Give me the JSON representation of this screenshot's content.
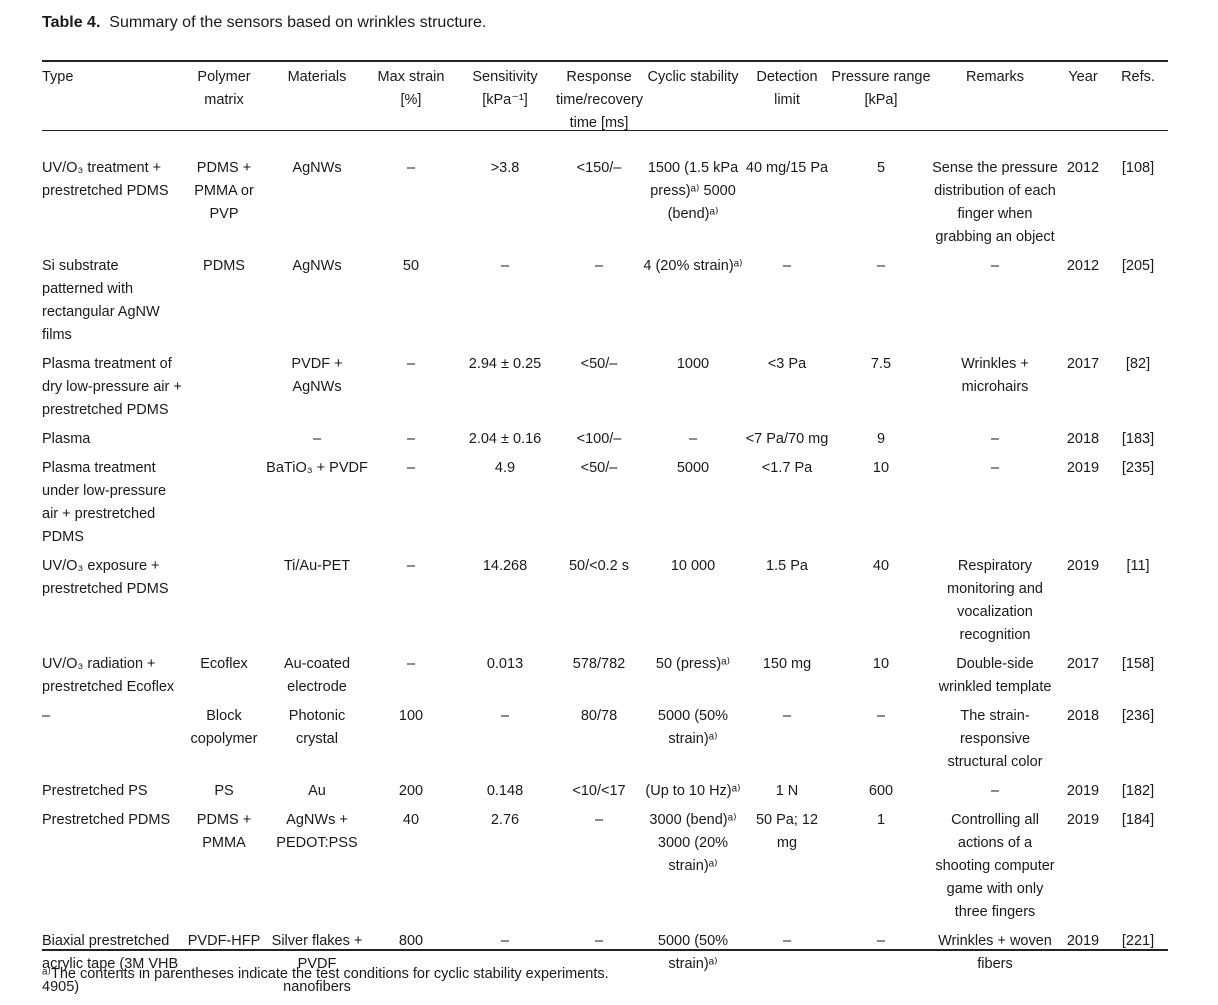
{
  "caption": {
    "label": "Table 4.",
    "text": "Summary of the sensors based on wrinkles structure."
  },
  "headers": {
    "type": "Type",
    "polymer": "Polymer matrix",
    "materials": "Materials",
    "max_strain": "Max strain [%]",
    "sensitivity": "Sensitivity [kPa⁻¹]",
    "response": "Response time/recovery time [ms]",
    "cyclic": "Cyclic stability",
    "detection": "Detection limit",
    "pressure": "Pressure range [kPa]",
    "remarks": "Remarks",
    "year": "Year",
    "refs": "Refs."
  },
  "rows": [
    {
      "type": "UV/O₃ treatment + prestretched PDMS",
      "polymer": "PDMS + PMMA or PVP",
      "materials": "AgNWs",
      "max_strain": "–",
      "sensitivity": ">3.8",
      "response": "<150/–",
      "cyclic": "1500 (1.5 kPa press)ᵃ⁾ 5000 (bend)ᵃ⁾",
      "detection": "40 mg/15 Pa",
      "pressure": "5",
      "remarks": "Sense the pressure distribution of each finger when grabbing an object",
      "year": "2012",
      "refs": "[108]"
    },
    {
      "type": "Si substrate patterned with rectangular AgNW films",
      "polymer": "PDMS",
      "materials": "AgNWs",
      "max_strain": "50",
      "sensitivity": "–",
      "response": "–",
      "cyclic": "4 (20% strain)ᵃ⁾",
      "detection": "–",
      "pressure": "–",
      "remarks": "–",
      "year": "2012",
      "refs": "[205]"
    },
    {
      "type": "Plasma treatment of dry low-pressure air + prestretched PDMS",
      "polymer": "",
      "materials": "PVDF + AgNWs",
      "max_strain": "–",
      "sensitivity": "2.94 ± 0.25",
      "response": "<50/–",
      "cyclic": "1000",
      "detection": "<3 Pa",
      "pressure": "7.5",
      "remarks": "Wrinkles + microhairs",
      "year": "2017",
      "refs": "[82]"
    },
    {
      "type": "Plasma",
      "polymer": "",
      "materials": "–",
      "max_strain": "–",
      "sensitivity": "2.04 ± 0.16",
      "response": "<100/–",
      "cyclic": "–",
      "detection": "<7 Pa/70 mg",
      "pressure": "9",
      "remarks": "–",
      "year": "2018",
      "refs": "[183]"
    },
    {
      "type": "Plasma treatment under low-pressure air + prestretched PDMS",
      "polymer": "",
      "materials": "BaTiO₃ + PVDF",
      "max_strain": "–",
      "sensitivity": "4.9",
      "response": "<50/–",
      "cyclic": "5000",
      "detection": "<1.7 Pa",
      "pressure": "10",
      "remarks": "–",
      "year": "2019",
      "refs": "[235]"
    },
    {
      "type": "UV/O₃ exposure + prestretched PDMS",
      "polymer": "",
      "materials": "Ti/Au-PET",
      "max_strain": "–",
      "sensitivity": "14.268",
      "response": "50/<0.2 s",
      "cyclic": "10 000",
      "detection": "1.5 Pa",
      "pressure": "40",
      "remarks": "Respiratory monitoring and vocalization recognition",
      "year": "2019",
      "refs": "[11]"
    },
    {
      "type": "UV/O₃ radiation + prestretched Ecoflex",
      "polymer": "Ecoflex",
      "materials": "Au-coated electrode",
      "max_strain": "–",
      "sensitivity": "0.013",
      "response": "578/782",
      "cyclic": "50 (press)ᵃ⁾",
      "detection": "150 mg",
      "pressure": "10",
      "remarks": "Double-side wrinkled template",
      "year": "2017",
      "refs": "[158]"
    },
    {
      "type": "–",
      "polymer": "Block copolymer",
      "materials": "Photonic crystal",
      "max_strain": "100",
      "sensitivity": "–",
      "response": "80/78",
      "cyclic": "5000 (50% strain)ᵃ⁾",
      "detection": "–",
      "pressure": "–",
      "remarks": "The strain-responsive structural color",
      "year": "2018",
      "refs": "[236]"
    },
    {
      "type": "Prestretched PS",
      "polymer": "PS",
      "materials": "Au",
      "max_strain": "200",
      "sensitivity": "0.148",
      "response": "<10/<17",
      "cyclic": "(Up to 10 Hz)ᵃ⁾",
      "detection": "1 N",
      "pressure": "600",
      "remarks": "–",
      "year": "2019",
      "refs": "[182]"
    },
    {
      "type": "Prestretched PDMS",
      "polymer": "PDMS + PMMA",
      "materials": "AgNWs + PEDOT:PSS",
      "max_strain": "40",
      "sensitivity": "2.76",
      "response": "–",
      "cyclic": "3000 (bend)ᵃ⁾ 3000 (20% strain)ᵃ⁾",
      "detection": "50 Pa; 12 mg",
      "pressure": "1",
      "remarks": "Controlling all actions of a shooting computer game with only three fingers",
      "year": "2019",
      "refs": "[184]"
    },
    {
      "type": "Biaxial prestretched acrylic tape (3M VHB 4905)",
      "polymer": "PVDF-HFP",
      "materials": "Silver flakes + PVDF nanofibers",
      "max_strain": "800",
      "sensitivity": "–",
      "response": "–",
      "cyclic": "5000 (50% strain)ᵃ⁾",
      "detection": "–",
      "pressure": "–",
      "remarks": "Wrinkles + woven fibers",
      "year": "2019",
      "refs": "[221]"
    }
  ],
  "footnote": "ᵃ⁾The contents in parentheses indicate the test conditions for cyclic stability experiments."
}
